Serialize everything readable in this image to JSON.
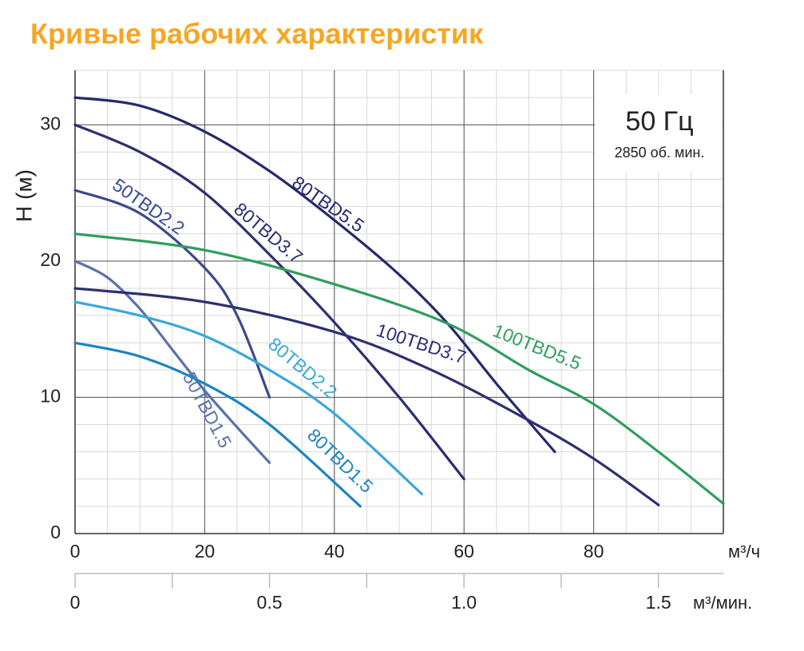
{
  "chart_data": {
    "type": "line",
    "title": "Кривые рабочих характеристик",
    "y_label": "H (м)",
    "x_label": "м³/ч",
    "x2_label": "м³/мин.",
    "annotations": [
      "50 Гц",
      "2850 об. мин."
    ],
    "xlim": [
      0,
      100
    ],
    "ylim": [
      0,
      34
    ],
    "xticks": [
      0,
      20,
      40,
      60,
      80
    ],
    "yticks": [
      0,
      10,
      20,
      30
    ],
    "x2lim": [
      0,
      1.667
    ],
    "x2ticks": [
      0,
      0.5,
      {
        "value": 1,
        "label": "1.0"
      },
      1.5
    ],
    "x2minorticks": [
      0.25,
      0.75,
      1.25
    ],
    "grid": true,
    "minor_grid": {
      "x": 5,
      "y": 2
    },
    "series": [
      {
        "name": "80TBD5.5",
        "color": "#252a6c",
        "x": [
          0,
          10,
          20,
          30,
          40,
          50,
          57.5,
          65,
          74
        ],
        "values": [
          32,
          31.4,
          29.5,
          26.6,
          23,
          19,
          15.4,
          11,
          6
        ]
      },
      {
        "name": "80TBD3.7",
        "color": "#2c3070",
        "x": [
          0,
          10,
          20,
          31,
          40,
          50,
          60
        ],
        "values": [
          30,
          28,
          25,
          20,
          15.5,
          10,
          4
        ]
      },
      {
        "name": "50TBD2.2",
        "color": "#3b4a8c",
        "x": [
          0,
          10,
          20,
          25,
          30
        ],
        "values": [
          25.2,
          23.5,
          19.5,
          16,
          10
        ]
      },
      {
        "name": "50TBD1.5",
        "color": "#5a72aa",
        "x": [
          0,
          5,
          10,
          15,
          20,
          25,
          30
        ],
        "values": [
          20,
          18.8,
          16.5,
          13.5,
          10.5,
          7.8,
          5.2
        ]
      },
      {
        "name": "100TBD3.7",
        "color": "#2c3070",
        "x": [
          0,
          20,
          40,
          55,
          70,
          80,
          90
        ],
        "values": [
          18,
          17,
          14.8,
          12,
          8.3,
          5.5,
          2.1
        ]
      },
      {
        "name": "100TBD5.5",
        "color": "#2f9e5c",
        "x": [
          0,
          20,
          40,
          57.5,
          70,
          80,
          90,
          100
        ],
        "values": [
          22,
          20.8,
          18.3,
          15.4,
          12,
          9.5,
          6,
          2.2
        ]
      },
      {
        "name": "80TBD2.2",
        "color": "#3aa8d8",
        "x": [
          0,
          10,
          20,
          30,
          40,
          53.5
        ],
        "values": [
          17,
          16,
          14.5,
          12,
          8.8,
          2.9
        ]
      },
      {
        "name": "80TBD1.5",
        "color": "#1b84c0",
        "x": [
          0,
          10,
          20,
          30,
          44
        ],
        "values": [
          14,
          13,
          11,
          8,
          2
        ]
      }
    ]
  }
}
